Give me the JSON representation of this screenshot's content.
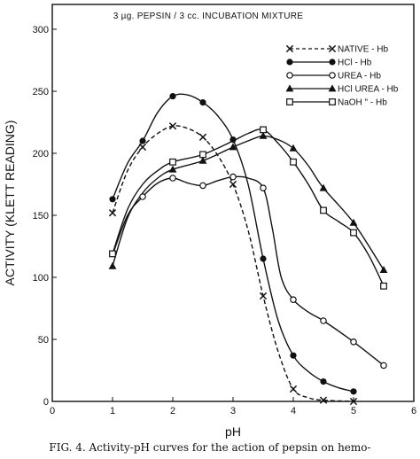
{
  "chart_data": {
    "type": "line",
    "title": "3 µg. PEPSIN / 3 cc. INCUBATION MIXTURE",
    "xlabel": "pH",
    "ylabel": "ACTIVITY (KLETT READING)",
    "xlim": [
      0,
      6
    ],
    "ylim": [
      0,
      320
    ],
    "xticks": [
      "0",
      "1",
      "2",
      "3",
      "4",
      "5",
      "6"
    ],
    "yticks": [
      "0",
      "50",
      "100",
      "150",
      "200",
      "250",
      "300"
    ],
    "legend_position": "top-right",
    "series": [
      {
        "name": "NATIVE - Hb",
        "marker": "x",
        "dash": true,
        "points": [
          [
            1.0,
            152
          ],
          [
            1.5,
            205
          ],
          [
            2.0,
            222
          ],
          [
            2.5,
            213
          ],
          [
            3.0,
            175
          ],
          [
            3.5,
            85
          ],
          [
            4.0,
            10
          ],
          [
            4.5,
            1
          ],
          [
            5.0,
            0
          ]
        ],
        "curve": [
          [
            1.0,
            152
          ],
          [
            1.25,
            186
          ],
          [
            1.5,
            205
          ],
          [
            1.75,
            216
          ],
          [
            2.0,
            222
          ],
          [
            2.25,
            220
          ],
          [
            2.5,
            213
          ],
          [
            2.75,
            198
          ],
          [
            3.0,
            175
          ],
          [
            3.25,
            138
          ],
          [
            3.5,
            85
          ],
          [
            3.75,
            40
          ],
          [
            4.0,
            10
          ],
          [
            4.25,
            3
          ],
          [
            4.5,
            1
          ],
          [
            5.0,
            0
          ]
        ]
      },
      {
        "name": "HCl - Hb",
        "marker": "filled-circle",
        "dash": false,
        "points": [
          [
            1.0,
            163
          ],
          [
            1.5,
            210
          ],
          [
            2.0,
            246
          ],
          [
            2.5,
            241
          ],
          [
            3.0,
            211
          ],
          [
            3.5,
            115
          ],
          [
            4.0,
            37
          ],
          [
            4.5,
            16
          ],
          [
            5.0,
            8
          ]
        ],
        "curve": [
          [
            1.0,
            163
          ],
          [
            1.25,
            192
          ],
          [
            1.5,
            210
          ],
          [
            1.75,
            233
          ],
          [
            2.0,
            246
          ],
          [
            2.25,
            247
          ],
          [
            2.5,
            241
          ],
          [
            2.75,
            230
          ],
          [
            3.0,
            211
          ],
          [
            3.25,
            175
          ],
          [
            3.5,
            115
          ],
          [
            3.75,
            65
          ],
          [
            4.0,
            37
          ],
          [
            4.25,
            24
          ],
          [
            4.5,
            16
          ],
          [
            4.75,
            11
          ],
          [
            5.0,
            8
          ]
        ]
      },
      {
        "name": "UREA - Hb",
        "marker": "open-circle",
        "dash": false,
        "points": [
          [
            1.5,
            165
          ],
          [
            2.0,
            180
          ],
          [
            2.5,
            174
          ],
          [
            3.0,
            181
          ],
          [
            3.5,
            172
          ],
          [
            4.0,
            82
          ],
          [
            4.5,
            65
          ],
          [
            5.0,
            48
          ],
          [
            5.5,
            29
          ]
        ],
        "curve": [
          [
            1.0,
            118
          ],
          [
            1.25,
            150
          ],
          [
            1.5,
            165
          ],
          [
            1.75,
            176
          ],
          [
            2.0,
            180
          ],
          [
            2.25,
            176
          ],
          [
            2.5,
            174
          ],
          [
            2.75,
            178
          ],
          [
            3.0,
            181
          ],
          [
            3.25,
            180
          ],
          [
            3.5,
            172
          ],
          [
            3.65,
            140
          ],
          [
            3.8,
            100
          ],
          [
            4.0,
            82
          ],
          [
            4.25,
            72
          ],
          [
            4.5,
            65
          ],
          [
            5.0,
            48
          ],
          [
            5.5,
            29
          ]
        ]
      },
      {
        "name": "HCl UREA - Hb",
        "marker": "filled-triangle",
        "dash": false,
        "points": [
          [
            1.0,
            109
          ],
          [
            2.0,
            187
          ],
          [
            2.5,
            194
          ],
          [
            3.0,
            205
          ],
          [
            3.5,
            214
          ],
          [
            4.0,
            204
          ],
          [
            4.5,
            172
          ],
          [
            5.0,
            144
          ],
          [
            5.5,
            106
          ]
        ],
        "curve": [
          [
            1.0,
            109
          ],
          [
            1.25,
            148
          ],
          [
            1.5,
            168
          ],
          [
            1.75,
            180
          ],
          [
            2.0,
            187
          ],
          [
            2.5,
            194
          ],
          [
            3.0,
            205
          ],
          [
            3.25,
            210
          ],
          [
            3.5,
            214
          ],
          [
            3.75,
            211
          ],
          [
            4.0,
            204
          ],
          [
            4.25,
            190
          ],
          [
            4.5,
            172
          ],
          [
            5.0,
            144
          ],
          [
            5.5,
            106
          ]
        ]
      },
      {
        "name": "NaOH \" - Hb",
        "marker": "open-square",
        "dash": false,
        "points": [
          [
            1.0,
            119
          ],
          [
            2.0,
            193
          ],
          [
            2.5,
            199
          ],
          [
            3.5,
            219
          ],
          [
            4.0,
            193
          ],
          [
            4.5,
            154
          ],
          [
            5.0,
            136
          ],
          [
            5.5,
            93
          ]
        ],
        "curve": [
          [
            1.0,
            119
          ],
          [
            1.25,
            155
          ],
          [
            1.5,
            175
          ],
          [
            1.75,
            186
          ],
          [
            2.0,
            193
          ],
          [
            2.5,
            199
          ],
          [
            3.0,
            210
          ],
          [
            3.25,
            216
          ],
          [
            3.5,
            219
          ],
          [
            3.75,
            208
          ],
          [
            4.0,
            193
          ],
          [
            4.25,
            175
          ],
          [
            4.5,
            154
          ],
          [
            4.75,
            145
          ],
          [
            5.0,
            136
          ],
          [
            5.25,
            118
          ],
          [
            5.5,
            93
          ]
        ]
      }
    ]
  },
  "caption": "FIG. 4. Activity-pH curves for the action of pepsin on hemo-"
}
